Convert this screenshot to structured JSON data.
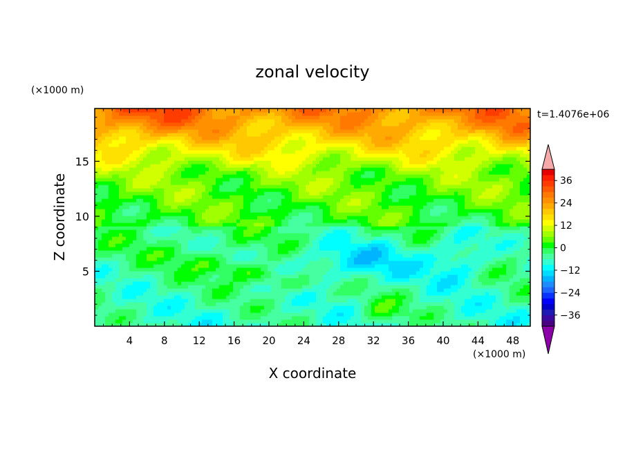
{
  "chart_data": {
    "type": "heatmap",
    "title": "zonal velocity",
    "xlabel": "X coordinate",
    "ylabel": "Z coordinate",
    "x_unit": "(×1000 m)",
    "y_unit": "(×1000 m)",
    "time_label": "t=1.4076e+06",
    "xlim": [
      0,
      50
    ],
    "ylim": [
      0,
      19.8
    ],
    "x_ticks": [
      "4",
      "8",
      "12",
      "16",
      "20",
      "24",
      "28",
      "32",
      "36",
      "40",
      "44",
      "48"
    ],
    "y_ticks": [
      "5",
      "10",
      "15"
    ],
    "colorbar": {
      "levels": [
        -42,
        -39,
        -36,
        -33,
        -30,
        -27,
        -24,
        -21,
        -18,
        -15,
        -12,
        -9,
        -6,
        -3,
        0,
        3,
        6,
        9,
        12,
        15,
        18,
        21,
        24,
        27,
        30,
        33,
        36,
        39,
        42
      ],
      "colors": [
        "#4b0082",
        "#3a0aa0",
        "#1c1cb4",
        "#0000cd",
        "#0000ff",
        "#0a32ff",
        "#1e64ff",
        "#1e8cff",
        "#00b4ff",
        "#00dcff",
        "#00ffff",
        "#32ffd2",
        "#46ffa0",
        "#32ff64",
        "#00ff00",
        "#64ff00",
        "#a0ff00",
        "#d2ff00",
        "#ffff00",
        "#ffe100",
        "#ffc800",
        "#ffaa00",
        "#ff9100",
        "#ff7800",
        "#ff5a00",
        "#ff3c00",
        "#ff1e00",
        "#e60000"
      ],
      "under_color": "#8b00a8",
      "over_color": "#f5a9a9",
      "tick_labels": [
        "36",
        "24",
        "12",
        "0",
        "−12",
        "−24",
        "−36"
      ]
    },
    "field_description": {
      "note_top": "westerly jet, 15 to 27 near top",
      "note_mid": "3 to 9 between z=8 and 14",
      "note_low": "easterly pocket, -6 to -15 near z=3-8"
    }
  }
}
